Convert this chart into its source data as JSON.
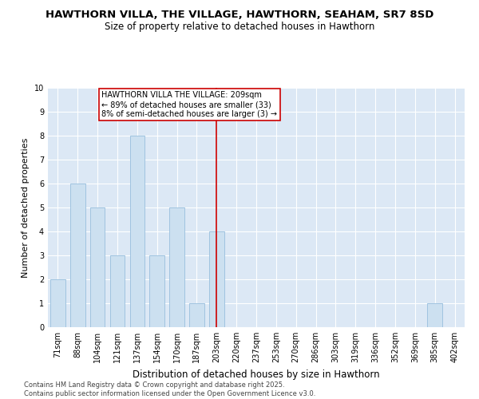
{
  "title": "HAWTHORN VILLA, THE VILLAGE, HAWTHORN, SEAHAM, SR7 8SD",
  "subtitle": "Size of property relative to detached houses in Hawthorn",
  "xlabel": "Distribution of detached houses by size in Hawthorn",
  "ylabel": "Number of detached properties",
  "categories": [
    "71sqm",
    "88sqm",
    "104sqm",
    "121sqm",
    "137sqm",
    "154sqm",
    "170sqm",
    "187sqm",
    "203sqm",
    "220sqm",
    "237sqm",
    "253sqm",
    "270sqm",
    "286sqm",
    "303sqm",
    "319sqm",
    "336sqm",
    "352sqm",
    "369sqm",
    "385sqm",
    "402sqm"
  ],
  "values": [
    2,
    6,
    5,
    3,
    8,
    3,
    5,
    1,
    4,
    0,
    0,
    0,
    0,
    0,
    0,
    0,
    0,
    0,
    0,
    1,
    0
  ],
  "bar_color": "#cce0f0",
  "bar_edge_color": "#a0c4e0",
  "bar_linewidth": 0.7,
  "bar_width": 0.75,
  "vline_x_index": 8,
  "vline_color": "#cc0000",
  "annotation_text": "HAWTHORN VILLA THE VILLAGE: 209sqm\n← 89% of detached houses are smaller (33)\n8% of semi-detached houses are larger (3) →",
  "annotation_box_color": "#ffffff",
  "annotation_box_edge": "#cc0000",
  "ylim": [
    0,
    10
  ],
  "yticks": [
    0,
    1,
    2,
    3,
    4,
    5,
    6,
    7,
    8,
    9,
    10
  ],
  "background_color": "#dce8f5",
  "footer_line1": "Contains HM Land Registry data © Crown copyright and database right 2025.",
  "footer_line2": "Contains public sector information licensed under the Open Government Licence v3.0.",
  "title_fontsize": 9.5,
  "subtitle_fontsize": 8.5,
  "axis_label_fontsize": 8,
  "tick_fontsize": 7,
  "annotation_fontsize": 7,
  "footer_fontsize": 6
}
